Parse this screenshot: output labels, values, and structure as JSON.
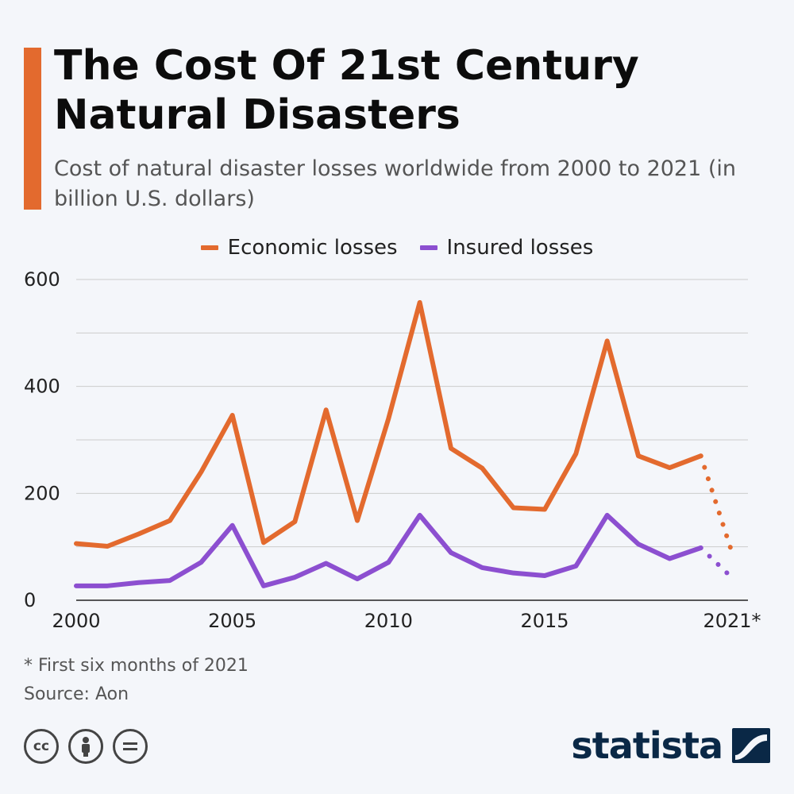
{
  "header": {
    "title": "The Cost Of 21st Century Natural Disasters",
    "subtitle": "Cost of natural disaster losses worldwide from 2000 to 2021 (in billion U.S. dollars)"
  },
  "colors": {
    "economic": "#e36a2e",
    "insured": "#8c4fd0",
    "accent": "#e36a2e",
    "grid": "#cccccc",
    "logo": "#0a2846"
  },
  "footer": {
    "footnote": "* First six months of 2021",
    "source": "Source: Aon",
    "license_icons": [
      "cc-icon",
      "by-person-icon",
      "nd-equals-icon"
    ],
    "logo_text": "statista"
  },
  "chart_data": {
    "type": "line",
    "x": [
      2000,
      2001,
      2002,
      2003,
      2004,
      2005,
      2006,
      2007,
      2008,
      2009,
      2010,
      2011,
      2012,
      2013,
      2014,
      2015,
      2016,
      2017,
      2018,
      2019,
      2020,
      2021
    ],
    "xticks": [
      "2000",
      "2005",
      "2010",
      "2015",
      "2021*"
    ],
    "yticks": [
      0,
      200,
      400,
      600
    ],
    "ylim": [
      0,
      600
    ],
    "grid": true,
    "legend_position": "top-center",
    "series": [
      {
        "name": "Economic losses",
        "values": [
          106,
          101,
          124,
          149,
          240,
          346,
          108,
          147,
          356,
          149,
          340,
          557,
          284,
          247,
          173,
          170,
          274,
          485,
          270,
          248,
          270,
          89
        ]
      },
      {
        "name": "Insured losses",
        "values": [
          27,
          27,
          33,
          37,
          71,
          140,
          27,
          43,
          69,
          40,
          71,
          159,
          89,
          61,
          51,
          46,
          64,
          159,
          105,
          78,
          98,
          42
        ]
      }
    ],
    "dotted_from_index": 20
  }
}
